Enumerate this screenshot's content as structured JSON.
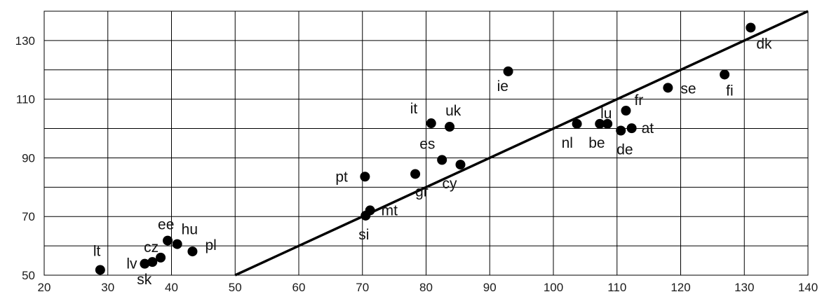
{
  "chart_data": {
    "type": "scatter",
    "title": "",
    "xlabel": "",
    "ylabel": "",
    "xlim": [
      20,
      140
    ],
    "ylim": [
      50,
      140
    ],
    "x_ticks": [
      20,
      30,
      40,
      50,
      60,
      70,
      80,
      90,
      100,
      110,
      120,
      130,
      140
    ],
    "y_ticks": [
      50,
      70,
      90,
      110,
      130
    ],
    "x_tick_labels": [
      "20",
      "30",
      "40",
      "50",
      "60",
      "70",
      "80",
      "90",
      "100",
      "110",
      "120",
      "130",
      "140"
    ],
    "y_tick_labels": [
      "50",
      "70",
      "90",
      "110",
      "130"
    ],
    "grid": true,
    "point_color": "#000000",
    "line_color": "#000000",
    "trend_line": {
      "x": [
        50,
        140
      ],
      "y": [
        50,
        140
      ]
    },
    "points": [
      {
        "label": "lt",
        "x": 28.8,
        "y": 51.8
      },
      {
        "label": "lv",
        "x": 35.8,
        "y": 53.9
      },
      {
        "label": "sk",
        "x": 37.0,
        "y": 54.5
      },
      {
        "label": "cz",
        "x": 38.3,
        "y": 56.0
      },
      {
        "label": "ee",
        "x": 39.4,
        "y": 61.8
      },
      {
        "label": "hu",
        "x": 40.9,
        "y": 60.6
      },
      {
        "label": "pl",
        "x": 43.3,
        "y": 58.1
      },
      {
        "label": "si",
        "x": 70.5,
        "y": 70.3
      },
      {
        "label": "mt",
        "x": 71.2,
        "y": 72.1
      },
      {
        "label": "pt",
        "x": 70.4,
        "y": 83.6
      },
      {
        "label": "gr",
        "x": 78.3,
        "y": 84.5
      },
      {
        "label": "es",
        "x": 82.5,
        "y": 89.3
      },
      {
        "label": "cy",
        "x": 85.4,
        "y": 87.7
      },
      {
        "label": "it",
        "x": 80.8,
        "y": 101.8
      },
      {
        "label": "uk",
        "x": 83.7,
        "y": 100.6
      },
      {
        "label": "ie",
        "x": 92.9,
        "y": 119.5
      },
      {
        "label": "nl",
        "x": 103.7,
        "y": 101.6
      },
      {
        "label": "be",
        "x": 107.3,
        "y": 101.6
      },
      {
        "label": "lu",
        "x": 108.5,
        "y": 101.6
      },
      {
        "label": "de",
        "x": 110.6,
        "y": 99.3
      },
      {
        "label": "at",
        "x": 112.3,
        "y": 100.1
      },
      {
        "label": "fr",
        "x": 111.4,
        "y": 106.1
      },
      {
        "label": "se",
        "x": 118.0,
        "y": 113.9
      },
      {
        "label": "fi",
        "x": 126.9,
        "y": 118.4
      },
      {
        "label": "dk",
        "x": 131.0,
        "y": 134.4
      }
    ]
  }
}
